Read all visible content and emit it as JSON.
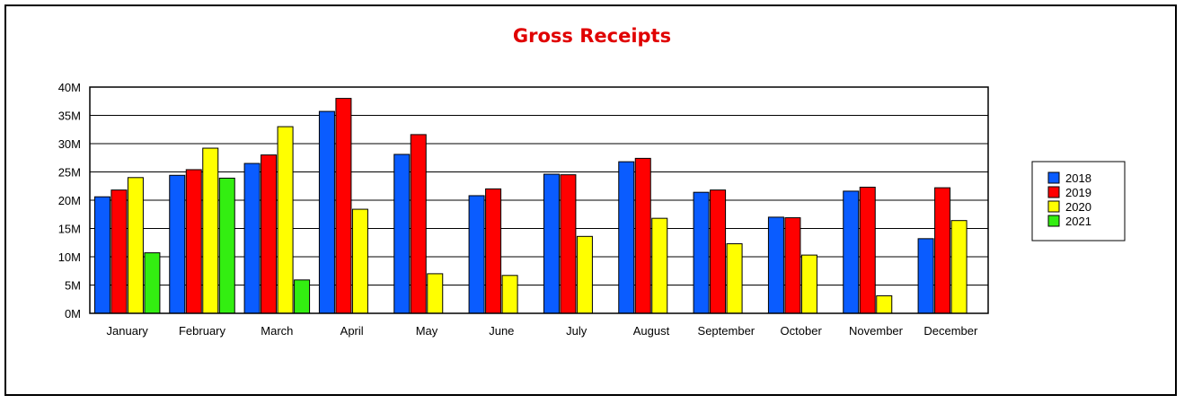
{
  "chart_data": {
    "type": "bar",
    "title": "Gross Receipts",
    "title_color": "#e00000",
    "categories": [
      "January",
      "February",
      "March",
      "April",
      "May",
      "June",
      "July",
      "August",
      "September",
      "October",
      "November",
      "December"
    ],
    "series": [
      {
        "name": "2018",
        "color": "#0a5cff",
        "values": [
          20.6,
          24.4,
          26.5,
          35.7,
          28.1,
          20.8,
          24.6,
          26.8,
          21.4,
          17.0,
          21.6,
          13.2
        ]
      },
      {
        "name": "2019",
        "color": "#ff0000",
        "values": [
          21.8,
          25.4,
          28.0,
          38.0,
          31.6,
          22.0,
          24.5,
          27.4,
          21.8,
          16.9,
          22.3,
          22.2
        ]
      },
      {
        "name": "2020",
        "color": "#ffff00",
        "values": [
          24.0,
          29.2,
          33.0,
          18.4,
          7.0,
          6.7,
          13.6,
          16.8,
          12.3,
          10.3,
          3.1,
          16.4
        ]
      },
      {
        "name": "2021",
        "color": "#33ee11",
        "values": [
          10.7,
          23.9,
          5.9,
          null,
          null,
          null,
          null,
          null,
          null,
          null,
          null,
          null
        ]
      }
    ],
    "yticks": [
      "0M",
      "5M",
      "10M",
      "15M",
      "20M",
      "25M",
      "30M",
      "35M",
      "40M"
    ],
    "ylim": [
      0,
      40
    ],
    "grid": true,
    "legend_position": "right"
  }
}
